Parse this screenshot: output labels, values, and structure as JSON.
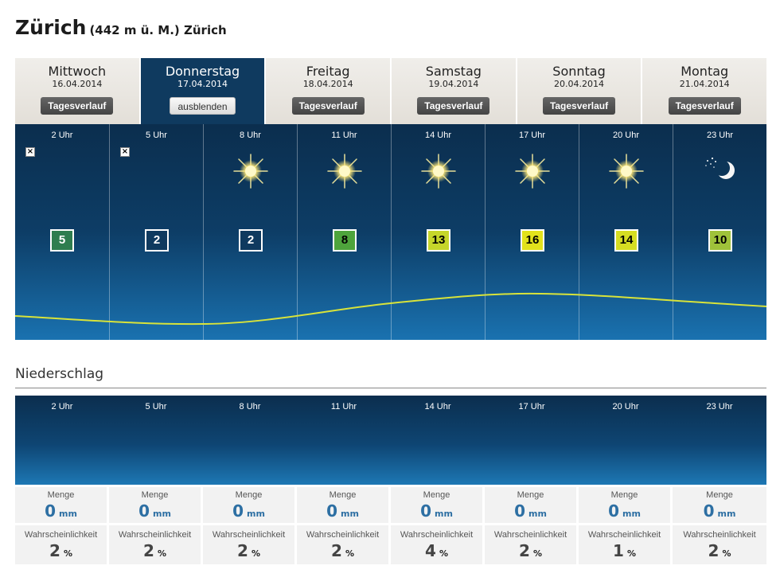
{
  "location": {
    "city": "Zürich",
    "subtitle": "(442 m ü. M.) Zürich"
  },
  "tabs": [
    {
      "day": "Mittwoch",
      "date": "16.04.2014",
      "button": "Tagesverlauf",
      "active": false
    },
    {
      "day": "Donnerstag",
      "date": "17.04.2014",
      "button": "ausblenden",
      "active": true
    },
    {
      "day": "Freitag",
      "date": "18.04.2014",
      "button": "Tagesverlauf",
      "active": false
    },
    {
      "day": "Samstag",
      "date": "19.04.2014",
      "button": "Tagesverlauf",
      "active": false
    },
    {
      "day": "Sonntag",
      "date": "20.04.2014",
      "button": "Tagesverlauf",
      "active": false
    },
    {
      "day": "Montag",
      "date": "21.04.2014",
      "button": "Tagesverlauf",
      "active": false
    }
  ],
  "hours": [
    {
      "label": "2 Uhr",
      "icon": "broken-image-icon",
      "temp": "5",
      "temp_bg": "#2e7d4f",
      "temp_fg": "#ffffff"
    },
    {
      "label": "5 Uhr",
      "icon": "broken-image-icon",
      "temp": "2",
      "temp_bg": "#0f3a5f",
      "temp_fg": "#ffffff"
    },
    {
      "label": "8 Uhr",
      "icon": "sun-icon",
      "temp": "2",
      "temp_bg": "#0f3a5f",
      "temp_fg": "#ffffff"
    },
    {
      "label": "11 Uhr",
      "icon": "sun-icon",
      "temp": "8",
      "temp_bg": "#4ea43c",
      "temp_fg": "#000000"
    },
    {
      "label": "14 Uhr",
      "icon": "sun-icon",
      "temp": "13",
      "temp_bg": "#c6d62a",
      "temp_fg": "#000000"
    },
    {
      "label": "17 Uhr",
      "icon": "sun-icon",
      "temp": "16",
      "temp_bg": "#e2e21c",
      "temp_fg": "#000000"
    },
    {
      "label": "20 Uhr",
      "icon": "sun-icon",
      "temp": "14",
      "temp_bg": "#d6dd22",
      "temp_fg": "#000000"
    },
    {
      "label": "23 Uhr",
      "icon": "moon-stars-icon",
      "temp": "10",
      "temp_bg": "#9fc23a",
      "temp_fg": "#000000"
    }
  ],
  "precipitation": {
    "title": "Niederschlag",
    "amount_label": "Menge",
    "amount_unit": "mm",
    "prob_label": "Wahrscheinlichkeit",
    "prob_unit": "%",
    "amounts": [
      "0",
      "0",
      "0",
      "0",
      "0",
      "0",
      "0",
      "0"
    ],
    "probabilities": [
      "2",
      "2",
      "2",
      "2",
      "4",
      "2",
      "1",
      "2"
    ]
  },
  "colors": {
    "panel_dark": "#0b2e4e",
    "panel_light": "#1a72b0",
    "curve": "#d8e33a",
    "amount_value": "#2d6fa3"
  }
}
